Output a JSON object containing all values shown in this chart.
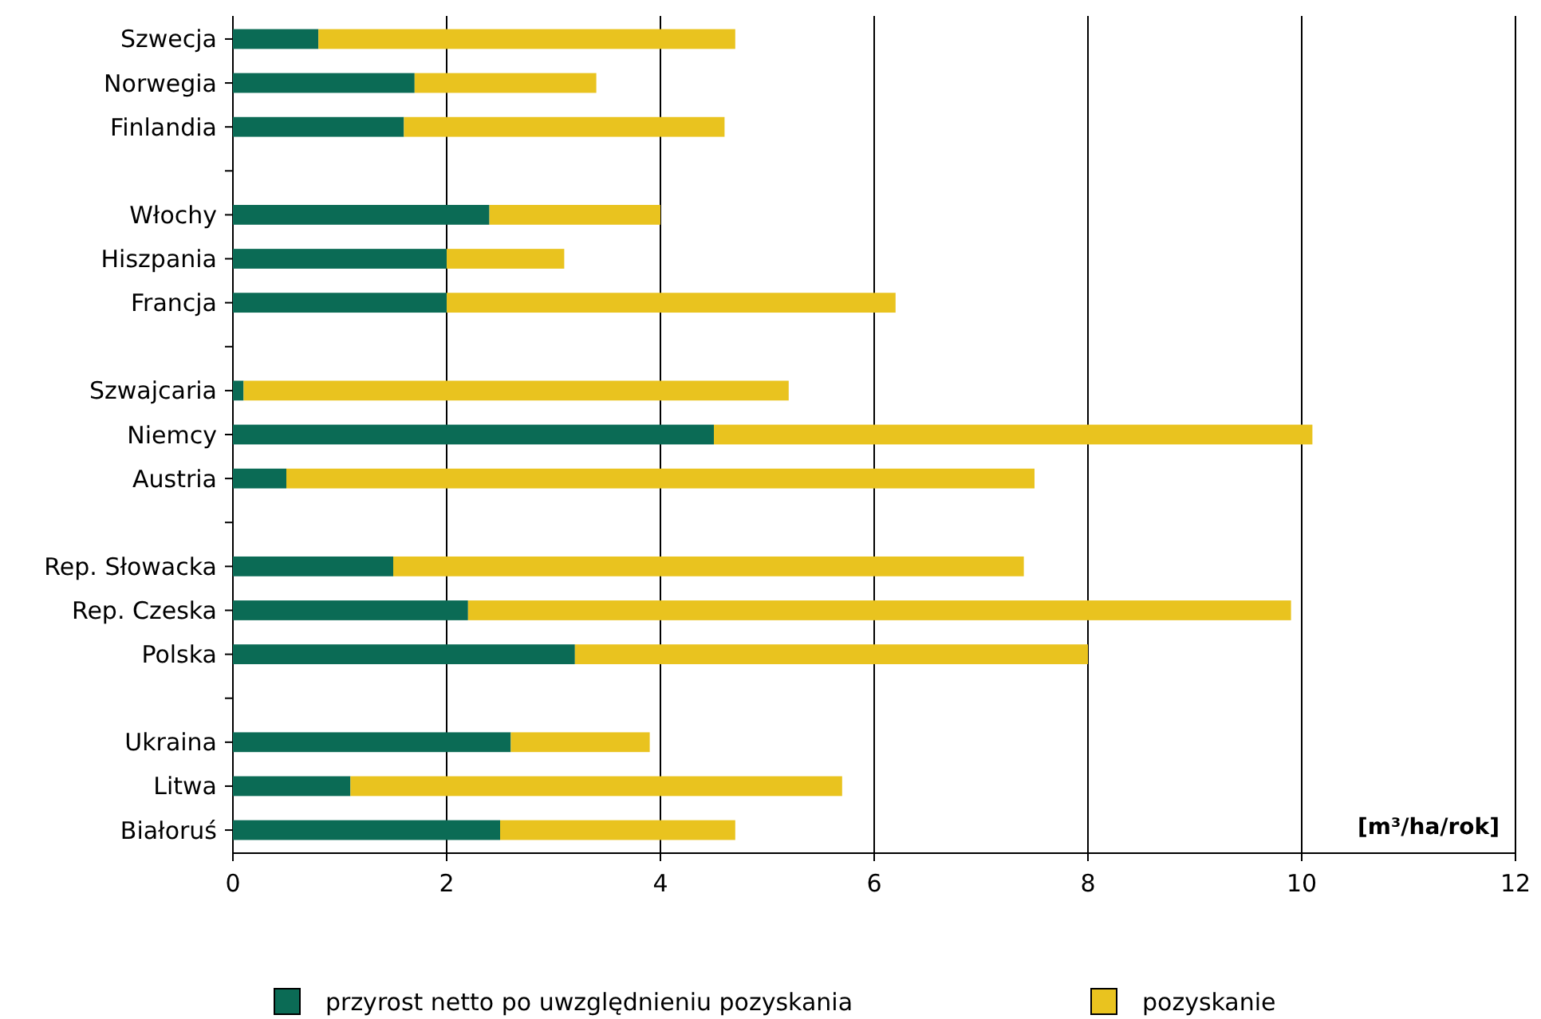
{
  "chart_data": {
    "type": "bar",
    "orientation": "horizontal",
    "stacked": true,
    "categories": [
      "Szwecja",
      "Norwegia",
      "Finlandia",
      null,
      "Włochy",
      "Hiszpania",
      "Francja",
      null,
      "Szwajcaria",
      "Niemcy",
      "Austria",
      null,
      "Rep. Słowacka",
      "Rep. Czeska",
      "Polska",
      null,
      "Ukraina",
      "Litwa",
      "Białoruś"
    ],
    "series": [
      {
        "name": "przyrost netto po uwzględnieniu pozyskania",
        "color": "#0b6b55",
        "values": [
          0.8,
          1.7,
          1.6,
          null,
          2.4,
          2.0,
          2.0,
          null,
          0.1,
          4.5,
          0.5,
          null,
          1.5,
          2.2,
          3.2,
          null,
          2.6,
          1.1,
          2.5
        ]
      },
      {
        "name": "pozyskanie",
        "color": "#e9c31f",
        "values": [
          3.9,
          1.7,
          3.0,
          null,
          1.6,
          1.1,
          4.2,
          null,
          5.1,
          5.6,
          7.0,
          null,
          5.9,
          7.7,
          4.8,
          null,
          1.3,
          4.6,
          2.2
        ]
      }
    ],
    "xlabel": "[m³/ha/rok]",
    "xlim": [
      0,
      12
    ],
    "xticks": [
      0,
      2,
      4,
      6,
      8,
      10,
      12
    ],
    "grid": "x",
    "legend": "bottom"
  }
}
